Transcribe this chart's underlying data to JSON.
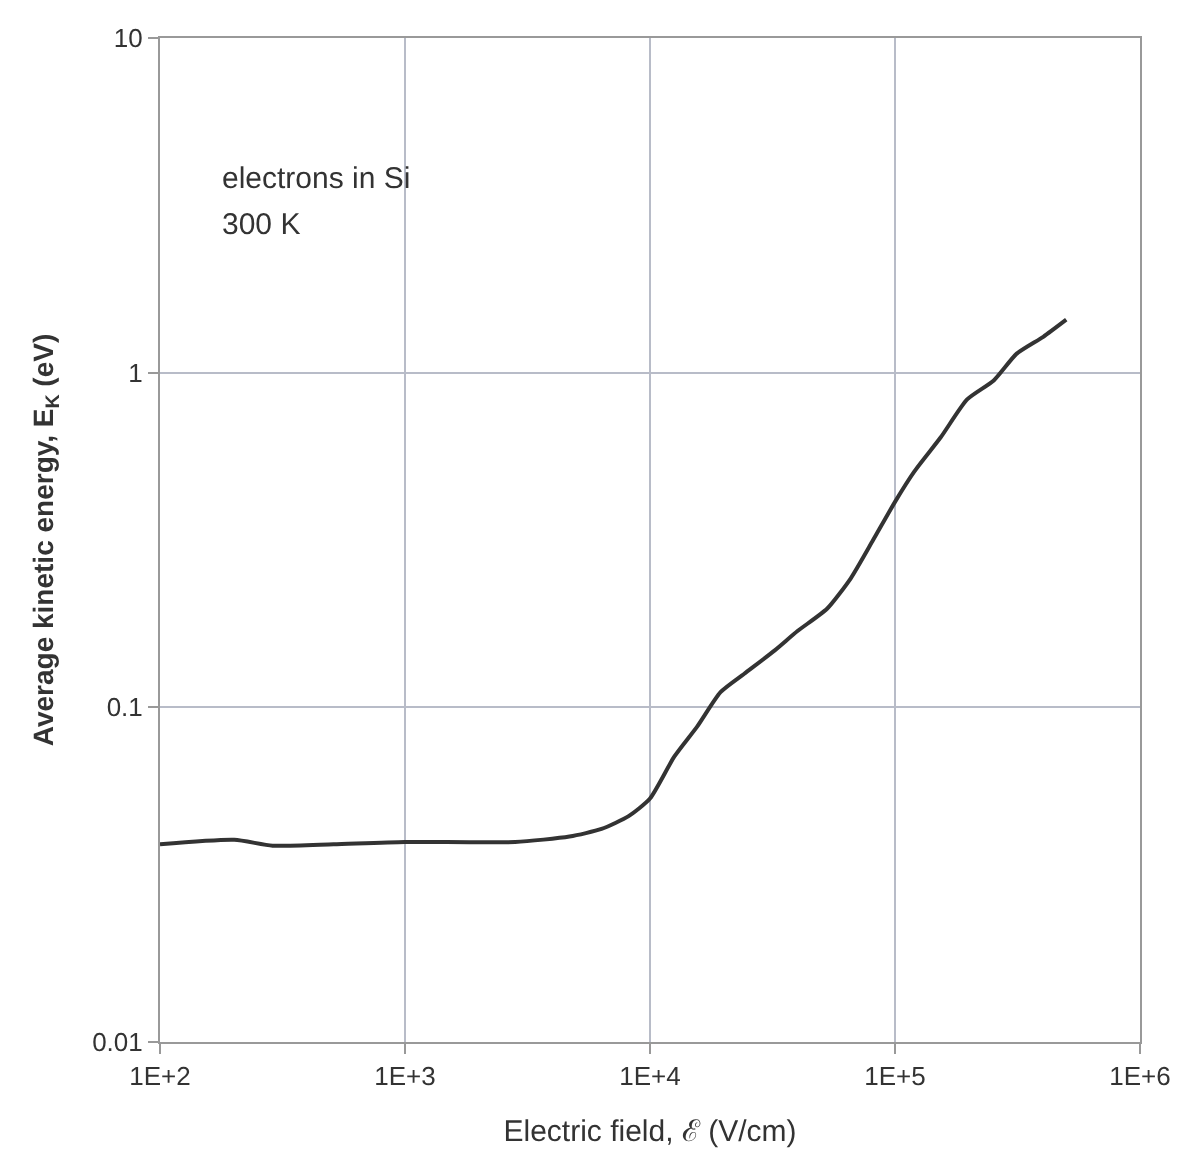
{
  "chart_data": {
    "type": "line",
    "xlabel": "Electric field, ℰ (V/cm)",
    "ylabel": "Average kinetic energy, E$_{K}$ (eV)",
    "annotations": [
      "electrons in Si",
      "300 K"
    ],
    "log": "xy",
    "grid": true,
    "marker": "none",
    "line_style": "solid",
    "xlim": [
      100,
      1000000
    ],
    "xticks": [
      {
        "value": 100,
        "label": "1E+2"
      },
      {
        "value": 1000,
        "label": "1E+3"
      },
      {
        "value": 10000,
        "label": "1E+4"
      },
      {
        "value": 100000,
        "label": "1E+5"
      },
      {
        "value": 1000000,
        "label": "1E+6"
      }
    ],
    "ylim": [
      0.01,
      10
    ],
    "yticks": [
      0.01,
      0.1,
      1,
      10
    ],
    "series": [
      {
        "color": "#333333",
        "x": [
          100,
          201,
          288,
          511,
          1000,
          2815,
          4690,
          6340,
          8180,
          10000,
          12560,
          15600,
          19400,
          24250,
          32300,
          40000,
          52800,
          66000,
          81400,
          100000,
          120000,
          153700,
          197000,
          253000,
          314000,
          403000,
          500000
        ],
        "values": [
          0.039,
          0.0402,
          0.0386,
          0.039,
          0.0396,
          0.0396,
          0.0411,
          0.0433,
          0.0473,
          0.0534,
          0.0712,
          0.0877,
          0.111,
          0.126,
          0.148,
          0.169,
          0.197,
          0.243,
          0.316,
          0.411,
          0.507,
          0.641,
          0.832,
          0.948,
          1.14,
          1.28,
          1.44
        ]
      }
    ]
  }
}
